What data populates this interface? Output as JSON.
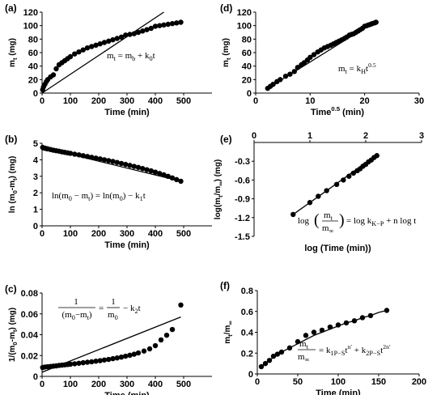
{
  "chart_data": [
    {
      "type": "scatter",
      "panel": "(a)",
      "xlabel": "Time (min)",
      "ylabel": "m_t (mg)",
      "xlim": [
        0,
        600
      ],
      "ylim": [
        0,
        120
      ],
      "xticks": [
        0,
        100,
        200,
        300,
        400,
        500
      ],
      "yticks": [
        0,
        20,
        40,
        60,
        80,
        100,
        120
      ],
      "equation": "m_t = m_b + k_0 t",
      "series": [
        {
          "kind": "points",
          "x": [
            2,
            5,
            10,
            15,
            20,
            30,
            40,
            50,
            60,
            70,
            80,
            90,
            100,
            115,
            130,
            145,
            160,
            175,
            190,
            205,
            220,
            235,
            250,
            265,
            280,
            295,
            310,
            325,
            340,
            355,
            370,
            385,
            400,
            415,
            430,
            445,
            460,
            475,
            490
          ],
          "y": [
            5,
            9,
            13,
            17,
            20,
            24,
            27,
            36,
            42,
            45,
            48,
            51,
            54,
            58,
            61,
            64,
            67,
            69,
            71,
            73,
            75,
            77,
            79,
            81,
            83,
            86,
            87,
            88,
            90,
            92,
            94,
            96,
            99,
            100,
            101,
            102,
            103,
            104,
            105
          ]
        },
        {
          "kind": "line",
          "x": [
            0,
            430
          ],
          "y": [
            0,
            120
          ]
        }
      ]
    },
    {
      "type": "scatter",
      "panel": "(d)",
      "xlabel": "Time^0.5 (min)",
      "ylabel": "m_t (mg)",
      "xlim": [
        0,
        30
      ],
      "ylim": [
        0,
        120
      ],
      "xticks": [
        0,
        10,
        20,
        30
      ],
      "yticks": [
        0,
        20,
        40,
        60,
        80,
        100,
        120
      ],
      "equation": "m_t = k_H t^0.5",
      "series": [
        {
          "kind": "points",
          "x": [
            2.2,
            2.7,
            3.2,
            3.9,
            4.5,
            5.5,
            6.3,
            7.1,
            7.7,
            8.4,
            8.9,
            9.5,
            10.0,
            10.7,
            11.4,
            12.0,
            12.6,
            13.2,
            13.8,
            14.3,
            14.8,
            15.3,
            15.8,
            16.3,
            16.7,
            17.2,
            17.6,
            18.0,
            18.4,
            18.8,
            19.2,
            19.6,
            20.0,
            20.4,
            20.7,
            21.1,
            21.4,
            21.8,
            22.1
          ],
          "y": [
            7,
            10,
            13,
            17,
            20,
            25,
            28,
            32,
            38,
            42,
            45,
            49,
            53,
            57,
            61,
            64,
            67,
            69,
            71,
            73,
            75,
            77,
            79,
            81,
            83,
            86,
            87,
            88,
            90,
            92,
            94,
            96,
            99,
            100,
            101,
            102,
            103,
            104,
            105
          ]
        },
        {
          "kind": "line",
          "x": [
            2,
            22.3
          ],
          "y": [
            6,
            108
          ]
        }
      ]
    },
    {
      "type": "scatter",
      "panel": "(b)",
      "xlabel": "Time (min)",
      "ylabel": "ln (m_0-m_t) (mg)",
      "xlim": [
        0,
        600
      ],
      "ylim": [
        0,
        5
      ],
      "xticks": [
        0,
        100,
        200,
        300,
        400,
        500
      ],
      "yticks": [
        0,
        1,
        2,
        3,
        4,
        5
      ],
      "equation": "ln(m_0 - m_t) = ln(m_0) - k_1 t",
      "series": [
        {
          "kind": "points",
          "x": [
            2,
            5,
            10,
            15,
            20,
            30,
            40,
            50,
            60,
            70,
            80,
            90,
            100,
            115,
            130,
            145,
            160,
            175,
            190,
            205,
            220,
            235,
            250,
            265,
            280,
            295,
            310,
            325,
            340,
            355,
            370,
            385,
            400,
            415,
            430,
            445,
            460,
            475,
            490
          ],
          "y": [
            4.75,
            4.72,
            4.7,
            4.68,
            4.66,
            4.62,
            4.58,
            4.55,
            4.52,
            4.48,
            4.45,
            4.42,
            4.39,
            4.34,
            4.3,
            4.25,
            4.2,
            4.15,
            4.1,
            4.05,
            4.0,
            3.95,
            3.9,
            3.84,
            3.78,
            3.72,
            3.66,
            3.6,
            3.54,
            3.47,
            3.4,
            3.33,
            3.25,
            3.17,
            3.09,
            3.0,
            2.9,
            2.8,
            2.7
          ]
        },
        {
          "kind": "line",
          "x": [
            0,
            490
          ],
          "y": [
            4.75,
            2.7
          ]
        }
      ]
    },
    {
      "type": "scatter",
      "panel": "(e)",
      "xlabel": "log (Time (min))",
      "ylabel": "log(m_t/m_∞) (mg)",
      "xlim": [
        0,
        3
      ],
      "ylim": [
        -1.5,
        0
      ],
      "xticks": [
        0,
        1,
        2,
        3
      ],
      "yticks": [
        -0.3,
        -0.6,
        -0.9,
        -1.2,
        -1.5
      ],
      "equation": "log(m_t / m_∞) = log k_K-P + n log t",
      "series": [
        {
          "kind": "points",
          "x": [
            0.7,
            1.0,
            1.15,
            1.3,
            1.48,
            1.6,
            1.7,
            1.78,
            1.85,
            1.9,
            1.95,
            2.0,
            2.05,
            2.1,
            2.15,
            2.2
          ],
          "y": [
            -1.15,
            -0.96,
            -0.86,
            -0.77,
            -0.67,
            -0.6,
            -0.54,
            -0.49,
            -0.45,
            -0.42,
            -0.38,
            -0.35,
            -0.31,
            -0.28,
            -0.24,
            -0.21
          ]
        },
        {
          "kind": "line",
          "x": [
            0.7,
            2.2
          ],
          "y": [
            -1.15,
            -0.2
          ]
        }
      ]
    },
    {
      "type": "scatter",
      "panel": "(c)",
      "xlabel": "Time (min)",
      "ylabel": "1/(m_0-m_t) (mg)",
      "xlim": [
        0,
        600
      ],
      "ylim": [
        0,
        0.08
      ],
      "xticks": [
        0,
        100,
        200,
        300,
        400,
        500
      ],
      "yticks": [
        0,
        0.02,
        0.04,
        0.06,
        0.08
      ],
      "equation": "1/(m_0 - m_t) = 1/m_0 - k_2 t",
      "series": [
        {
          "kind": "points",
          "x": [
            2,
            10,
            20,
            30,
            40,
            50,
            60,
            70,
            80,
            90,
            100,
            115,
            130,
            145,
            160,
            175,
            190,
            205,
            220,
            235,
            250,
            265,
            280,
            295,
            310,
            325,
            340,
            360,
            380,
            400,
            420,
            440,
            460,
            490
          ],
          "y": [
            0.0085,
            0.009,
            0.0093,
            0.0096,
            0.0098,
            0.0101,
            0.0105,
            0.0108,
            0.0111,
            0.0114,
            0.0117,
            0.0121,
            0.0126,
            0.0131,
            0.0136,
            0.014,
            0.0146,
            0.0151,
            0.0157,
            0.0163,
            0.017,
            0.0177,
            0.0185,
            0.0194,
            0.0203,
            0.0213,
            0.0225,
            0.0243,
            0.0264,
            0.0295,
            0.035,
            0.0395,
            0.045,
            0.0685
          ]
        },
        {
          "kind": "line",
          "x": [
            0,
            490
          ],
          "y": [
            0.004,
            0.057
          ]
        }
      ]
    },
    {
      "type": "scatter",
      "panel": "(f)",
      "xlabel": "Time (min)",
      "ylabel": "m_t/m_∞",
      "xlim": [
        0,
        200
      ],
      "ylim": [
        0,
        0.8
      ],
      "xticks": [
        0,
        50,
        100,
        150,
        200
      ],
      "yticks": [
        0,
        0.2,
        0.4,
        0.6,
        0.8
      ],
      "equation": "m_t / m_∞ = k_1P-S t^n' + k_2P-S t^2n'",
      "series": [
        {
          "kind": "points",
          "x": [
            5,
            10,
            15,
            20,
            25,
            30,
            40,
            50,
            60,
            70,
            80,
            90,
            100,
            110,
            120,
            130,
            140,
            160
          ],
          "y": [
            0.07,
            0.1,
            0.13,
            0.17,
            0.19,
            0.21,
            0.25,
            0.31,
            0.37,
            0.4,
            0.42,
            0.45,
            0.47,
            0.49,
            0.51,
            0.54,
            0.56,
            0.61
          ]
        },
        {
          "kind": "curve",
          "x": [
            5,
            10,
            15,
            20,
            30,
            40,
            50,
            60,
            70,
            80,
            90,
            100,
            110,
            120,
            130,
            140,
            150,
            160
          ],
          "y": [
            0.07,
            0.1,
            0.13,
            0.16,
            0.21,
            0.25,
            0.29,
            0.33,
            0.37,
            0.4,
            0.43,
            0.46,
            0.49,
            0.51,
            0.54,
            0.56,
            0.59,
            0.61
          ]
        }
      ]
    }
  ]
}
